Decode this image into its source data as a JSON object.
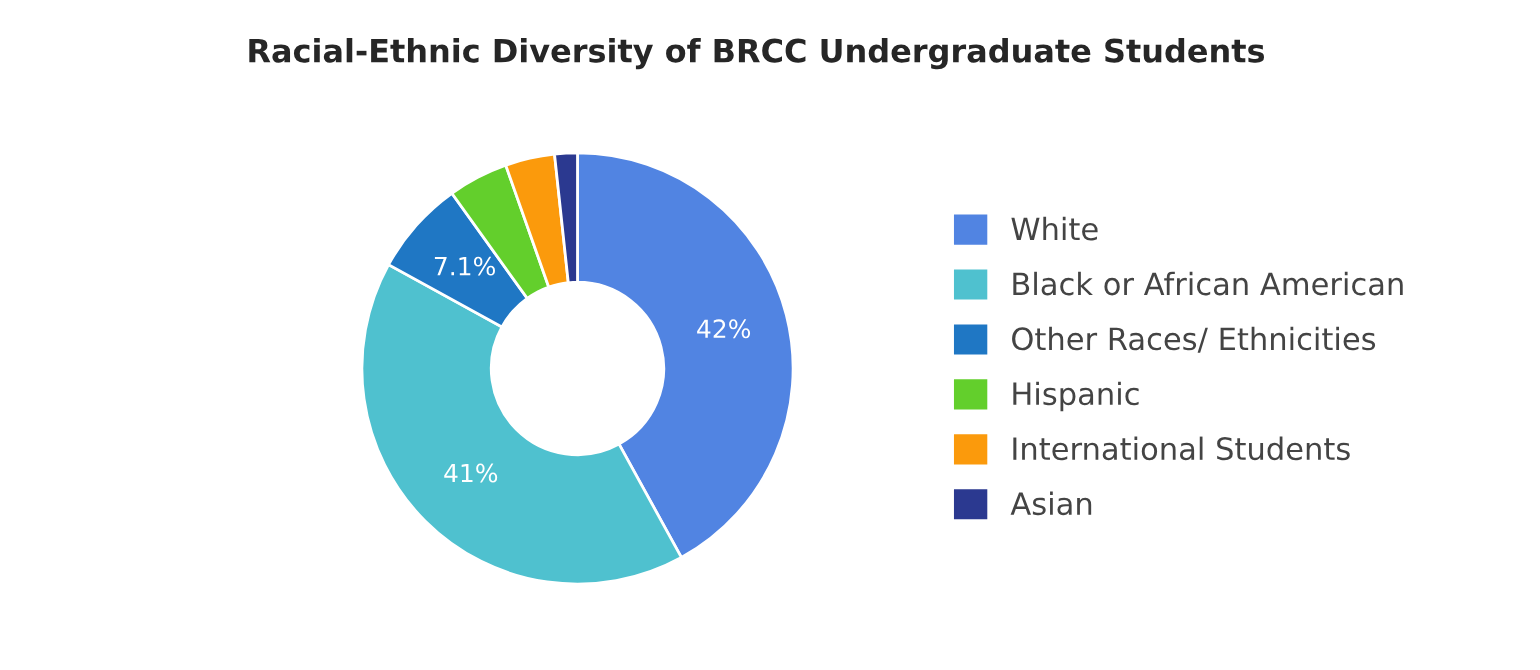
{
  "chart_data": {
    "type": "donut",
    "title": "Racial-Ethnic Diversity of BRCC Undergraduate Students",
    "categories": [
      "White",
      "Black or African American",
      "Other Races/ Ethnicities",
      "Hispanic",
      "International Students",
      "Asian"
    ],
    "values": [
      42,
      41,
      7.1,
      4.5,
      3.7,
      1.7
    ],
    "colors": [
      "#5184e2",
      "#4fc1cf",
      "#1f77c4",
      "#63cf2c",
      "#fb9a0c",
      "#2b3990"
    ],
    "value_labels": [
      "42%",
      "41%",
      "7.1%",
      null,
      null,
      null
    ],
    "legend": "right"
  }
}
